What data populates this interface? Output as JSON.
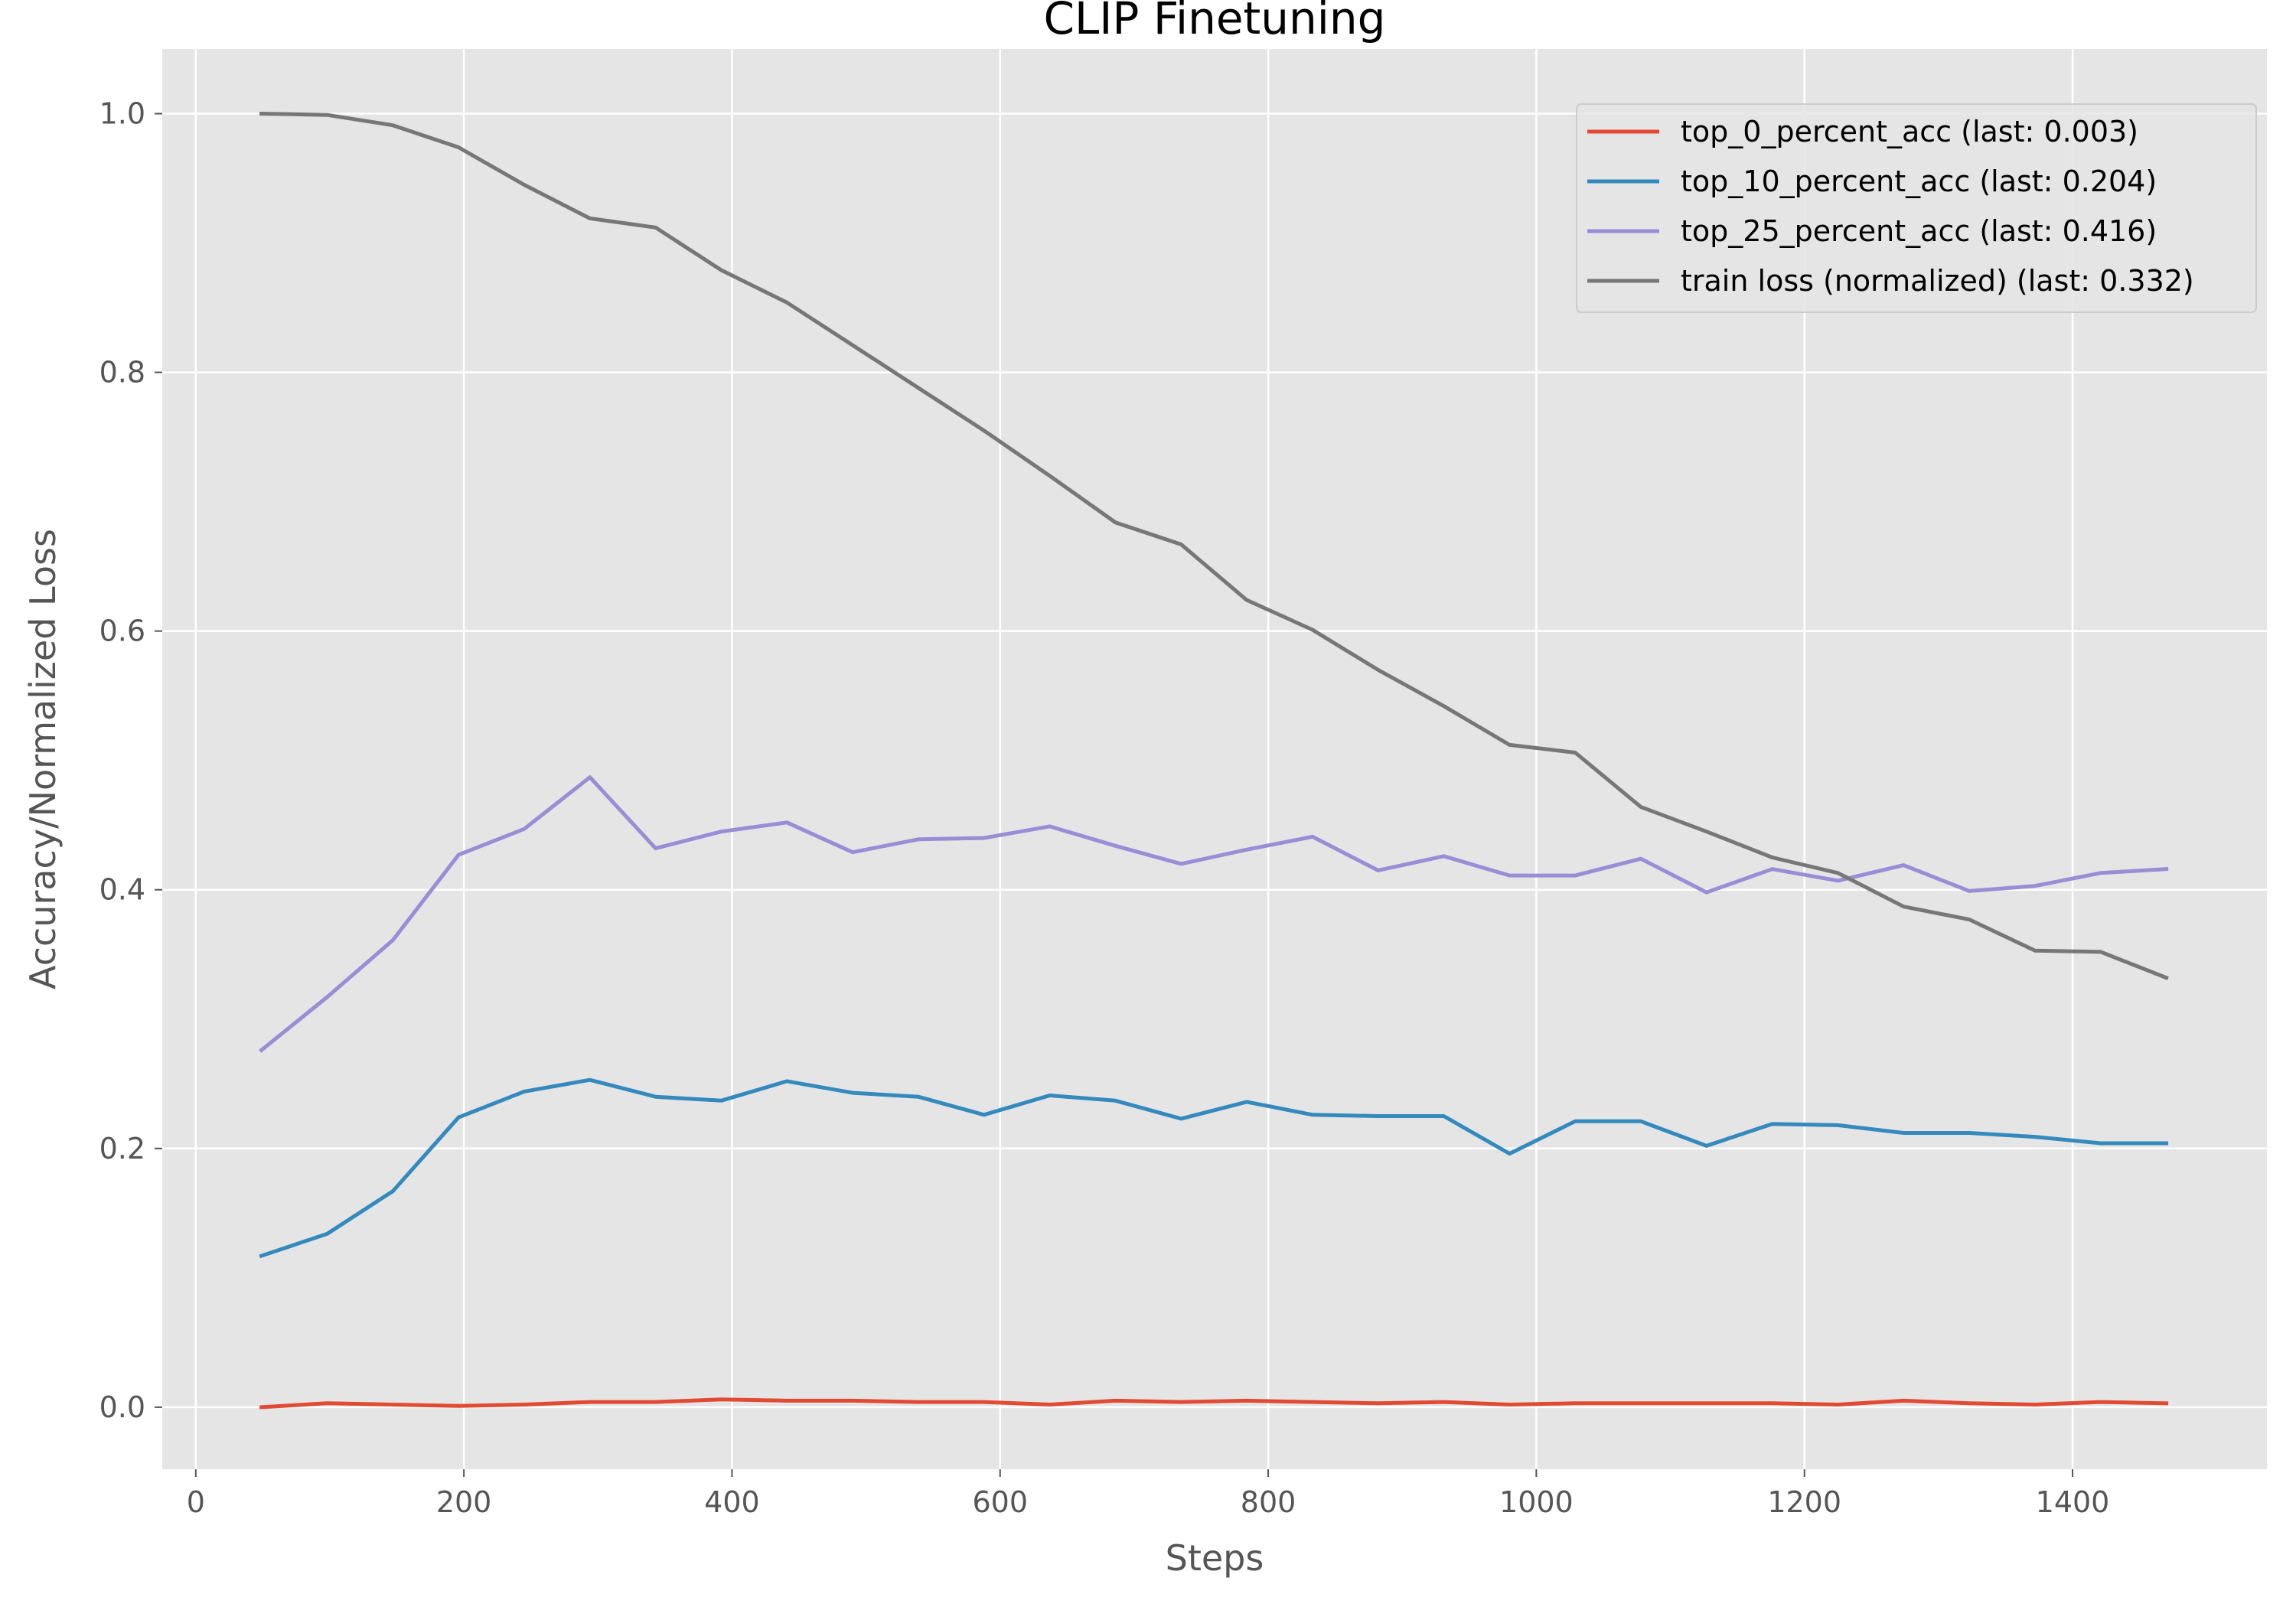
{
  "chart_data": {
    "type": "line",
    "title": "CLIP Finetuning",
    "xlabel": "Steps",
    "ylabel": "Accuracy/Normalized Loss",
    "xlim": [
      -25,
      1545
    ],
    "ylim": [
      -0.048,
      1.05
    ],
    "xticks": [
      0,
      200,
      400,
      600,
      800,
      1000,
      1200,
      1400
    ],
    "yticks": [
      0.0,
      0.2,
      0.4,
      0.6,
      0.8,
      1.0
    ],
    "xtick_labels": [
      "0",
      "200",
      "400",
      "600",
      "800",
      "1000",
      "1200",
      "1400"
    ],
    "ytick_labels": [
      "0.0",
      "0.2",
      "0.4",
      "0.6",
      "0.8",
      "1.0"
    ],
    "grid": true,
    "legend_position": "top-right",
    "x": [
      49,
      98,
      147,
      196,
      245,
      294,
      343,
      392,
      441,
      490,
      539,
      588,
      637,
      686,
      735,
      784,
      833,
      882,
      931,
      980,
      1029,
      1078,
      1127,
      1176,
      1225,
      1274,
      1323,
      1372,
      1421,
      1470
    ],
    "series": [
      {
        "name": "top_0_percent_acc (last: 0.003)",
        "color": "#E24A33",
        "values": [
          0.0,
          0.003,
          0.002,
          0.001,
          0.002,
          0.004,
          0.004,
          0.006,
          0.005,
          0.005,
          0.004,
          0.004,
          0.002,
          0.005,
          0.004,
          0.005,
          0.004,
          0.003,
          0.004,
          0.002,
          0.003,
          0.003,
          0.003,
          0.003,
          0.002,
          0.005,
          0.003,
          0.002,
          0.004,
          0.003
        ]
      },
      {
        "name": "top_10_percent_acc (last: 0.204)",
        "color": "#348ABD",
        "values": [
          0.117,
          0.134,
          0.167,
          0.224,
          0.244,
          0.253,
          0.24,
          0.237,
          0.252,
          0.243,
          0.24,
          0.226,
          0.241,
          0.237,
          0.223,
          0.236,
          0.226,
          0.225,
          0.225,
          0.196,
          0.221,
          0.221,
          0.202,
          0.219,
          0.218,
          0.212,
          0.212,
          0.209,
          0.204,
          0.204
        ]
      },
      {
        "name": "top_25_percent_acc (last: 0.416)",
        "color": "#988ED5",
        "values": [
          0.276,
          0.317,
          0.361,
          0.427,
          0.447,
          0.487,
          0.432,
          0.445,
          0.452,
          0.429,
          0.439,
          0.44,
          0.449,
          0.434,
          0.42,
          0.431,
          0.441,
          0.415,
          0.426,
          0.411,
          0.411,
          0.424,
          0.398,
          0.416,
          0.407,
          0.419,
          0.399,
          0.403,
          0.413,
          0.416
        ]
      },
      {
        "name": "train loss (normalized) (last: 0.332)",
        "color": "#777777",
        "values": [
          1.0,
          0.999,
          0.991,
          0.974,
          0.945,
          0.919,
          0.912,
          0.879,
          0.854,
          0.821,
          0.788,
          0.755,
          0.72,
          0.684,
          0.667,
          0.624,
          0.601,
          0.57,
          0.542,
          0.512,
          0.506,
          0.464,
          0.445,
          0.425,
          0.413,
          0.387,
          0.377,
          0.353,
          0.352,
          0.332
        ]
      }
    ]
  }
}
